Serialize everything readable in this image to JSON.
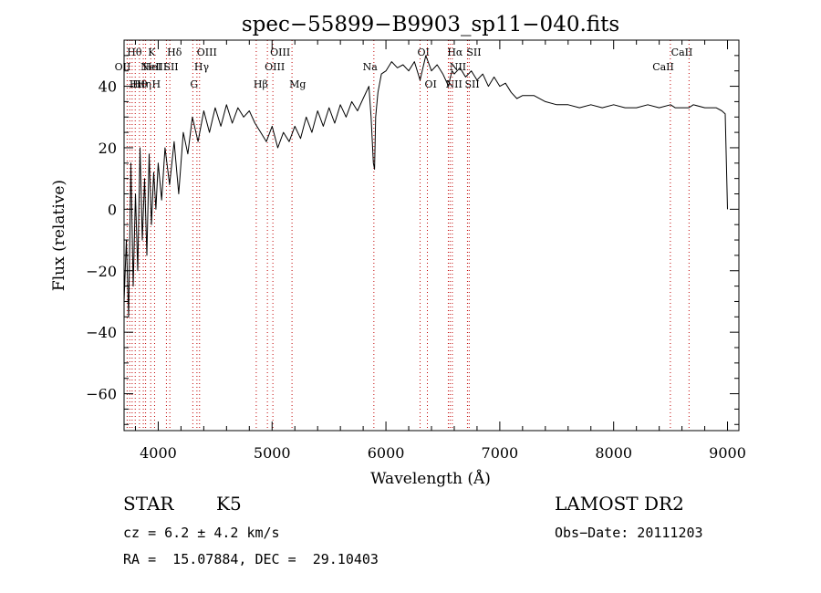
{
  "chart_data": {
    "type": "line",
    "title": "spec−55899−B9903_sp11−040.fits",
    "xlabel": "Wavelength (Å)",
    "ylabel": "Flux (relative)",
    "xlim": [
      3700,
      9100
    ],
    "ylim": [
      -72,
      55
    ],
    "x_ticks": [
      4000,
      5000,
      6000,
      7000,
      8000,
      9000
    ],
    "y_ticks": [
      -60,
      -40,
      -20,
      0,
      20,
      40
    ],
    "x_tick_labels": [
      "4000",
      "5000",
      "6000",
      "7000",
      "8000",
      "9000"
    ],
    "y_tick_labels": [
      "−60",
      "−40",
      "−20",
      "0",
      "20",
      "40"
    ],
    "grid": false,
    "line_color": "#000000",
    "marker_color": "#c00000",
    "series": [
      {
        "x": [
          3700,
          3720,
          3740,
          3760,
          3780,
          3800,
          3820,
          3840,
          3860,
          3880,
          3900,
          3920,
          3940,
          3960,
          3980,
          4000,
          4030,
          4060,
          4100,
          4140,
          4180,
          4220,
          4260,
          4300,
          4350,
          4400,
          4450,
          4500,
          4550,
          4600,
          4650,
          4700,
          4750,
          4800,
          4850,
          4900,
          4950,
          5000,
          5050,
          5100,
          5150,
          5200,
          5250,
          5300,
          5350,
          5400,
          5450,
          5500,
          5550,
          5600,
          5650,
          5700,
          5750,
          5800,
          5850,
          5870,
          5890,
          5900,
          5910,
          5930,
          5960,
          6000,
          6050,
          6100,
          6150,
          6200,
          6250,
          6300,
          6350,
          6400,
          6450,
          6500,
          6550,
          6560,
          6580,
          6600,
          6650,
          6700,
          6750,
          6800,
          6850,
          6900,
          6950,
          7000,
          7050,
          7100,
          7150,
          7200,
          7300,
          7400,
          7500,
          7600,
          7700,
          7800,
          7900,
          8000,
          8100,
          8200,
          8300,
          8400,
          8500,
          8540,
          8600,
          8660,
          8700,
          8800,
          8900,
          8950,
          8980,
          9000
        ],
        "y": [
          -30,
          -10,
          -35,
          15,
          -25,
          5,
          -20,
          20,
          -10,
          10,
          -15,
          18,
          -5,
          12,
          0,
          15,
          3,
          20,
          8,
          22,
          5,
          25,
          18,
          30,
          22,
          32,
          25,
          33,
          27,
          34,
          28,
          33,
          30,
          32,
          28,
          25,
          22,
          27,
          20,
          25,
          22,
          27,
          23,
          30,
          25,
          32,
          27,
          33,
          28,
          34,
          30,
          35,
          32,
          36,
          40,
          30,
          15,
          13,
          30,
          38,
          44,
          45,
          48,
          46,
          47,
          45,
          48,
          42,
          50,
          45,
          47,
          44,
          40,
          42,
          45,
          44,
          46,
          43,
          45,
          42,
          44,
          40,
          43,
          40,
          41,
          38,
          36,
          37,
          37,
          35,
          34,
          34,
          33,
          34,
          33,
          34,
          33,
          33,
          34,
          33,
          34,
          33,
          33,
          33,
          34,
          33,
          33,
          32,
          31,
          0
        ]
      }
    ],
    "line_markers": [
      {
        "x": 3727,
        "label": "OII",
        "row": 2,
        "align": "end"
      },
      {
        "x": 3750,
        "label": "Hθ",
        "row": 1,
        "align": "start"
      },
      {
        "x": 3771,
        "label": "Hι",
        "row": 3,
        "align": "start"
      },
      {
        "x": 3798,
        "label": "Hθ",
        "row": 3,
        "align": "start"
      },
      {
        "x": 3835,
        "label": "Hη",
        "row": 3,
        "align": "start"
      },
      {
        "x": 3869,
        "label": "NeIII",
        "row": 2,
        "align": "start"
      },
      {
        "x": 3889,
        "label": "HeI",
        "row": 2,
        "align": "start"
      },
      {
        "x": 3934,
        "label": "K",
        "row": 1,
        "align": "start"
      },
      {
        "x": 3968,
        "label": "H",
        "row": 3,
        "align": "start"
      },
      {
        "x": 4072,
        "label": "SII",
        "row": 2,
        "align": "start"
      },
      {
        "x": 4102,
        "label": "Hδ",
        "row": 1,
        "align": "start"
      },
      {
        "x": 4304,
        "label": "G",
        "row": 3,
        "align": "start"
      },
      {
        "x": 4340,
        "label": "Hγ",
        "row": 2,
        "align": "start"
      },
      {
        "x": 4363,
        "label": "OIII",
        "row": 1,
        "align": "start"
      },
      {
        "x": 4861,
        "label": "Hβ",
        "row": 3,
        "align": "start"
      },
      {
        "x": 4959,
        "label": "OIII",
        "row": 2,
        "align": "start"
      },
      {
        "x": 5007,
        "label": "OIII",
        "row": 1,
        "align": "start"
      },
      {
        "x": 5175,
        "label": "Mg",
        "row": 3,
        "align": "start"
      },
      {
        "x": 5894,
        "label": "Na",
        "row": 2,
        "align": "end"
      },
      {
        "x": 6300,
        "label": "OI",
        "row": 1,
        "align": "start"
      },
      {
        "x": 6364,
        "label": "OI",
        "row": 3,
        "align": "start"
      },
      {
        "x": 6548,
        "label": "NII",
        "row": 3,
        "align": "start"
      },
      {
        "x": 6563,
        "label": "Hα",
        "row": 1,
        "align": "start"
      },
      {
        "x": 6583,
        "label": "NII",
        "row": 2,
        "align": "start"
      },
      {
        "x": 6716,
        "label": "SII",
        "row": 3,
        "align": "start"
      },
      {
        "x": 6731,
        "label": "SII",
        "row": 1,
        "align": "start"
      },
      {
        "x": 8498,
        "label": "CaII",
        "row": 2,
        "align": "end"
      },
      {
        "x": 8662,
        "label": "CaII",
        "row": 1,
        "align": "end"
      }
    ]
  },
  "info": {
    "class": "STAR",
    "subclass": "K5",
    "survey": "LAMOST DR2",
    "cz": "cz = 6.2 ± 4.2 km/s",
    "obs_date": "Obs−Date: 20111203",
    "coords": "RA =  15.07884, DEC =  29.10403"
  }
}
